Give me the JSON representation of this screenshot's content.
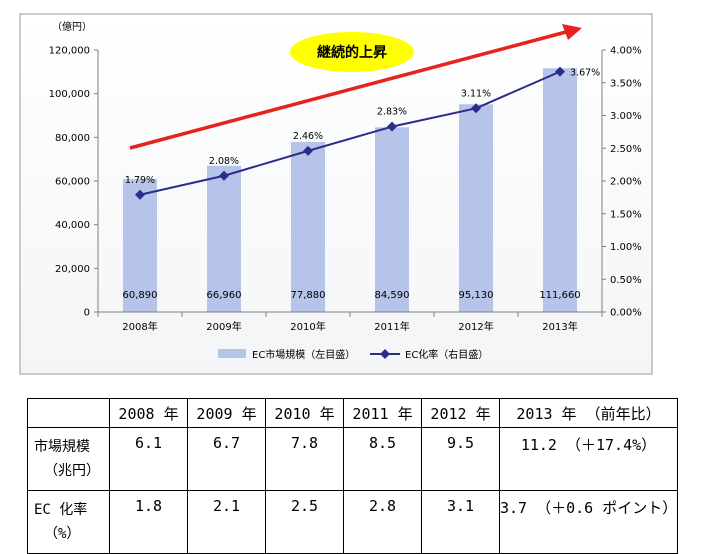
{
  "colors": {
    "bar": "#b7c4ea",
    "line": "#2c2c8c",
    "arrow": "#e8231d",
    "badge": "#ffff00"
  },
  "chart_data": {
    "type": "bar",
    "categories": [
      "2008年",
      "2009年",
      "2010年",
      "2011年",
      "2012年",
      "2013年"
    ],
    "series": [
      {
        "name": "EC市場規模（左目盛）",
        "type": "bar",
        "axis": "left",
        "values": [
          60890,
          66960,
          77880,
          84590,
          95130,
          111660
        ],
        "labels": [
          "60,890",
          "66,960",
          "77,880",
          "84,590",
          "95,130",
          "111,660"
        ]
      },
      {
        "name": "EC化率（右目盛）",
        "type": "line",
        "axis": "right",
        "values": [
          1.79,
          2.08,
          2.46,
          2.83,
          3.11,
          3.67
        ],
        "labels": [
          "1.79%",
          "2.08%",
          "2.46%",
          "2.83%",
          "3.11%",
          "3.67%"
        ]
      }
    ],
    "y_left": {
      "label": "（億円）",
      "range": [
        0,
        120000
      ],
      "ticks": [
        "0",
        "20,000",
        "40,000",
        "60,000",
        "80,000",
        "100,000",
        "120,000"
      ]
    },
    "y_right": {
      "range": [
        0,
        4
      ],
      "ticks": [
        "0.00%",
        "0.50%",
        "1.00%",
        "1.50%",
        "2.00%",
        "2.50%",
        "3.00%",
        "3.50%",
        "4.00%"
      ]
    },
    "annotation": "継続的上昇",
    "legend_position": "bottom"
  },
  "table": {
    "header": [
      "",
      "2008 年",
      "2009 年",
      "2010 年",
      "2011 年",
      "2012 年",
      "2013 年 （前年比）"
    ],
    "rows": [
      {
        "label": "市場規模",
        "unit": "（兆円）",
        "values": [
          "6.1",
          "6.7",
          "7.8",
          "8.5",
          "9.5",
          "11.2 （＋17.4%）"
        ]
      },
      {
        "label": "EC 化率",
        "unit": "（%）",
        "values": [
          "1.8",
          "2.1",
          "2.5",
          "2.8",
          "3.1",
          "3.7 （＋0.6 ポイント）"
        ]
      }
    ]
  }
}
